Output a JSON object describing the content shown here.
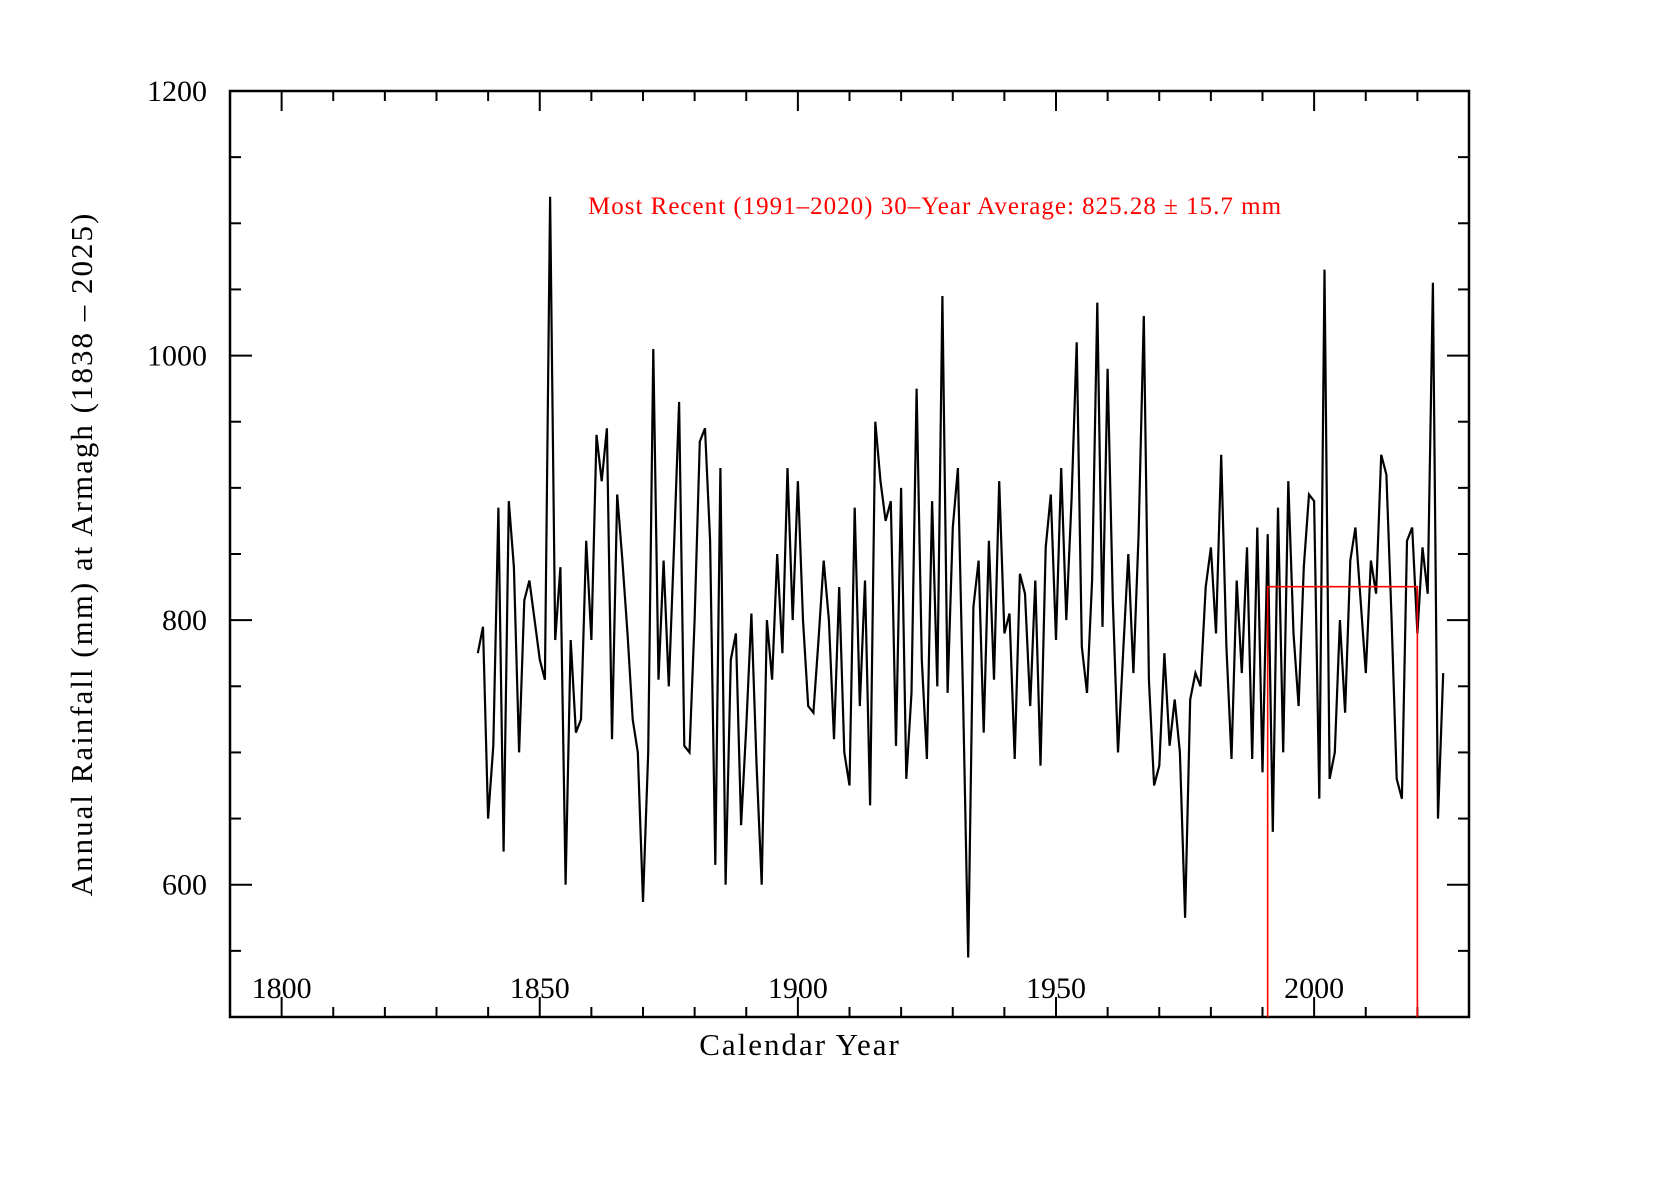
{
  "figure": {
    "background": "#ffffff",
    "frame_color": "#000000",
    "series_color": "#000000",
    "accent_color": "#ff0000"
  },
  "chart_data": {
    "type": "line",
    "title": "",
    "xlabel": "Calendar Year",
    "ylabel": "Annual Rainfall (mm) at Armagh (1838 – 2025)",
    "annotation": {
      "text": "Most Recent (1991–2020) 30–Year Average: 825.28 ± 15.7 mm",
      "color": "#ff0000"
    },
    "xlim": [
      1790,
      2030
    ],
    "ylim": [
      500,
      1200
    ],
    "x_major_ticks": [
      1800,
      1850,
      1900,
      1950,
      2000
    ],
    "x_minor_step": 10,
    "y_major_ticks": [
      600,
      800,
      1000,
      1200
    ],
    "y_minor_step": 50,
    "grid": false,
    "legend": "none",
    "years": {
      "start": 1838,
      "end": 2025
    },
    "series": [
      {
        "name": "annual-rainfall-mm",
        "color": "#000000",
        "values": [
          775,
          795,
          650,
          705,
          885,
          625,
          890,
          840,
          700,
          815,
          830,
          800,
          770,
          755,
          1120,
          785,
          840,
          600,
          785,
          715,
          725,
          860,
          785,
          940,
          905,
          945,
          710,
          895,
          845,
          790,
          725,
          700,
          587,
          700,
          1005,
          755,
          845,
          750,
          855,
          965,
          705,
          700,
          800,
          935,
          945,
          860,
          615,
          915,
          600,
          770,
          790,
          645,
          720,
          805,
          690,
          600,
          800,
          755,
          850,
          775,
          915,
          800,
          905,
          800,
          735,
          730,
          785,
          845,
          800,
          710,
          825,
          700,
          675,
          885,
          735,
          830,
          660,
          950,
          905,
          875,
          890,
          705,
          900,
          680,
          745,
          975,
          770,
          695,
          890,
          750,
          1045,
          745,
          870,
          915,
          740,
          545,
          810,
          845,
          715,
          860,
          755,
          905,
          790,
          805,
          695,
          835,
          820,
          735,
          830,
          690,
          855,
          895,
          785,
          915,
          800,
          890,
          1010,
          780,
          745,
          830,
          1040,
          795,
          990,
          815,
          700,
          775,
          850,
          760,
          865,
          1030,
          755,
          675,
          690,
          775,
          705,
          740,
          700,
          575,
          740,
          760,
          750,
          825,
          855,
          790,
          925,
          780,
          695,
          830,
          760,
          855,
          695,
          870,
          685,
          865,
          640,
          885,
          700,
          905,
          790,
          735,
          840,
          895,
          890,
          665,
          1065,
          680,
          700,
          800,
          730,
          845,
          870,
          815,
          760,
          845,
          820,
          925,
          910,
          800,
          680,
          665,
          860,
          870,
          790,
          855,
          820,
          1055,
          650,
          760
        ]
      }
    ],
    "highlight_box": {
      "x0": 1991,
      "x1": 2020,
      "y0": 500,
      "y1": 825.28,
      "color": "#ff0000"
    }
  }
}
